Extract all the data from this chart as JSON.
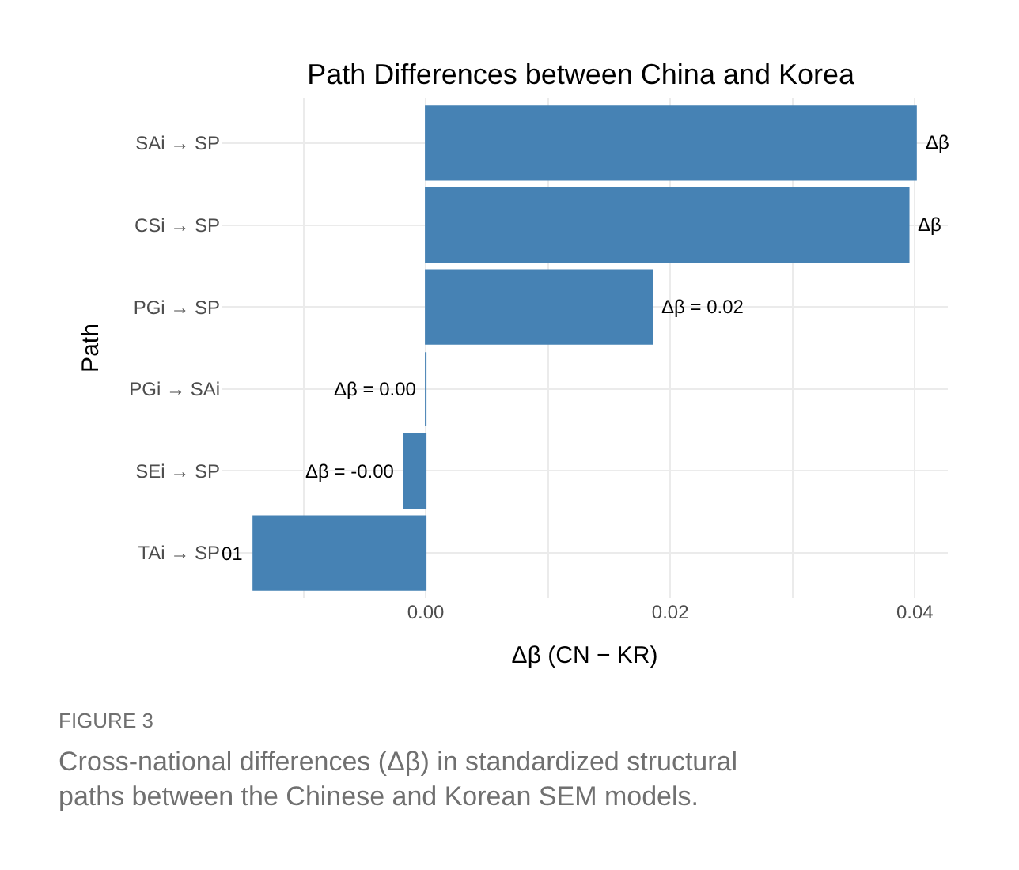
{
  "chart_data": {
    "type": "bar",
    "orientation": "horizontal",
    "title": "Path Differences between China and Korea",
    "xlabel": "Δβ (CN − KR)",
    "ylabel": "Path",
    "categories": [
      "SAi → SP",
      "CSi → SP",
      "PGi → SP",
      "PGi → SAi",
      "SEi → SP",
      "TAi → SP"
    ],
    "values": [
      0.0401,
      0.0395,
      0.0185,
      0.0,
      -0.0018,
      -0.0141
    ],
    "value_labels": [
      "Δβ",
      "Δβ",
      "Δβ = 0.02",
      "Δβ = 0.00",
      "Δβ = -0.00",
      null
    ],
    "color": "#4682b4",
    "xlim": [
      -0.0167,
      0.0427
    ],
    "xticks": [
      {
        "value": -0.01,
        "label": null
      },
      {
        "value": 0.0,
        "label": "0.00"
      },
      {
        "value": 0.01,
        "label": null
      },
      {
        "value": 0.02,
        "label": "0.02"
      },
      {
        "value": 0.03,
        "label": null
      },
      {
        "value": 0.04,
        "label": "0.04"
      }
    ],
    "grid": true,
    "legend": false,
    "annotations": [
      {
        "text": "01",
        "x": -0.0141,
        "y": "TAi → SP"
      },
      "FIGURE 3",
      "Cross-national differences (Δβ) in standardized structural paths between the Chinese and Korean SEM models."
    ]
  }
}
